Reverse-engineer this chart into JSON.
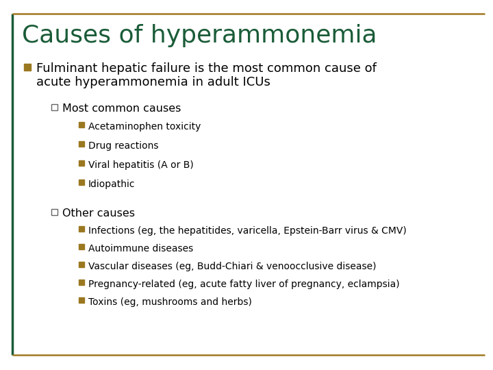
{
  "title": "Causes of hyperammonemia",
  "title_color": "#1a5c38",
  "background_color": "#ffffff",
  "border_color": "#a07820",
  "bullet_color": "#9a7820",
  "text_color": "#000000",
  "level1_line1": "Fulminant hepatic failure is the most common cause of",
  "level1_line2": "acute hyperammonemia in adult ICUs",
  "group1_header": "Most common causes",
  "group1_items": [
    "Acetaminophen toxicity",
    "Drug reactions",
    "Viral hepatitis (A or B)",
    "Idiopathic"
  ],
  "group2_header": "Other causes",
  "group2_items": [
    "Infections (eg, the hepatitides, varicella, Epstein-Barr virus & CMV)",
    "Autoimmune diseases",
    "Vascular diseases (eg, Budd-Chiari & venoocclusive disease)",
    "Pregnancy-related (eg, acute fatty liver of pregnancy, eclampsia)",
    "Toxins (eg, mushrooms and herbs)"
  ],
  "fig_width": 7.2,
  "fig_height": 5.4,
  "dpi": 100
}
